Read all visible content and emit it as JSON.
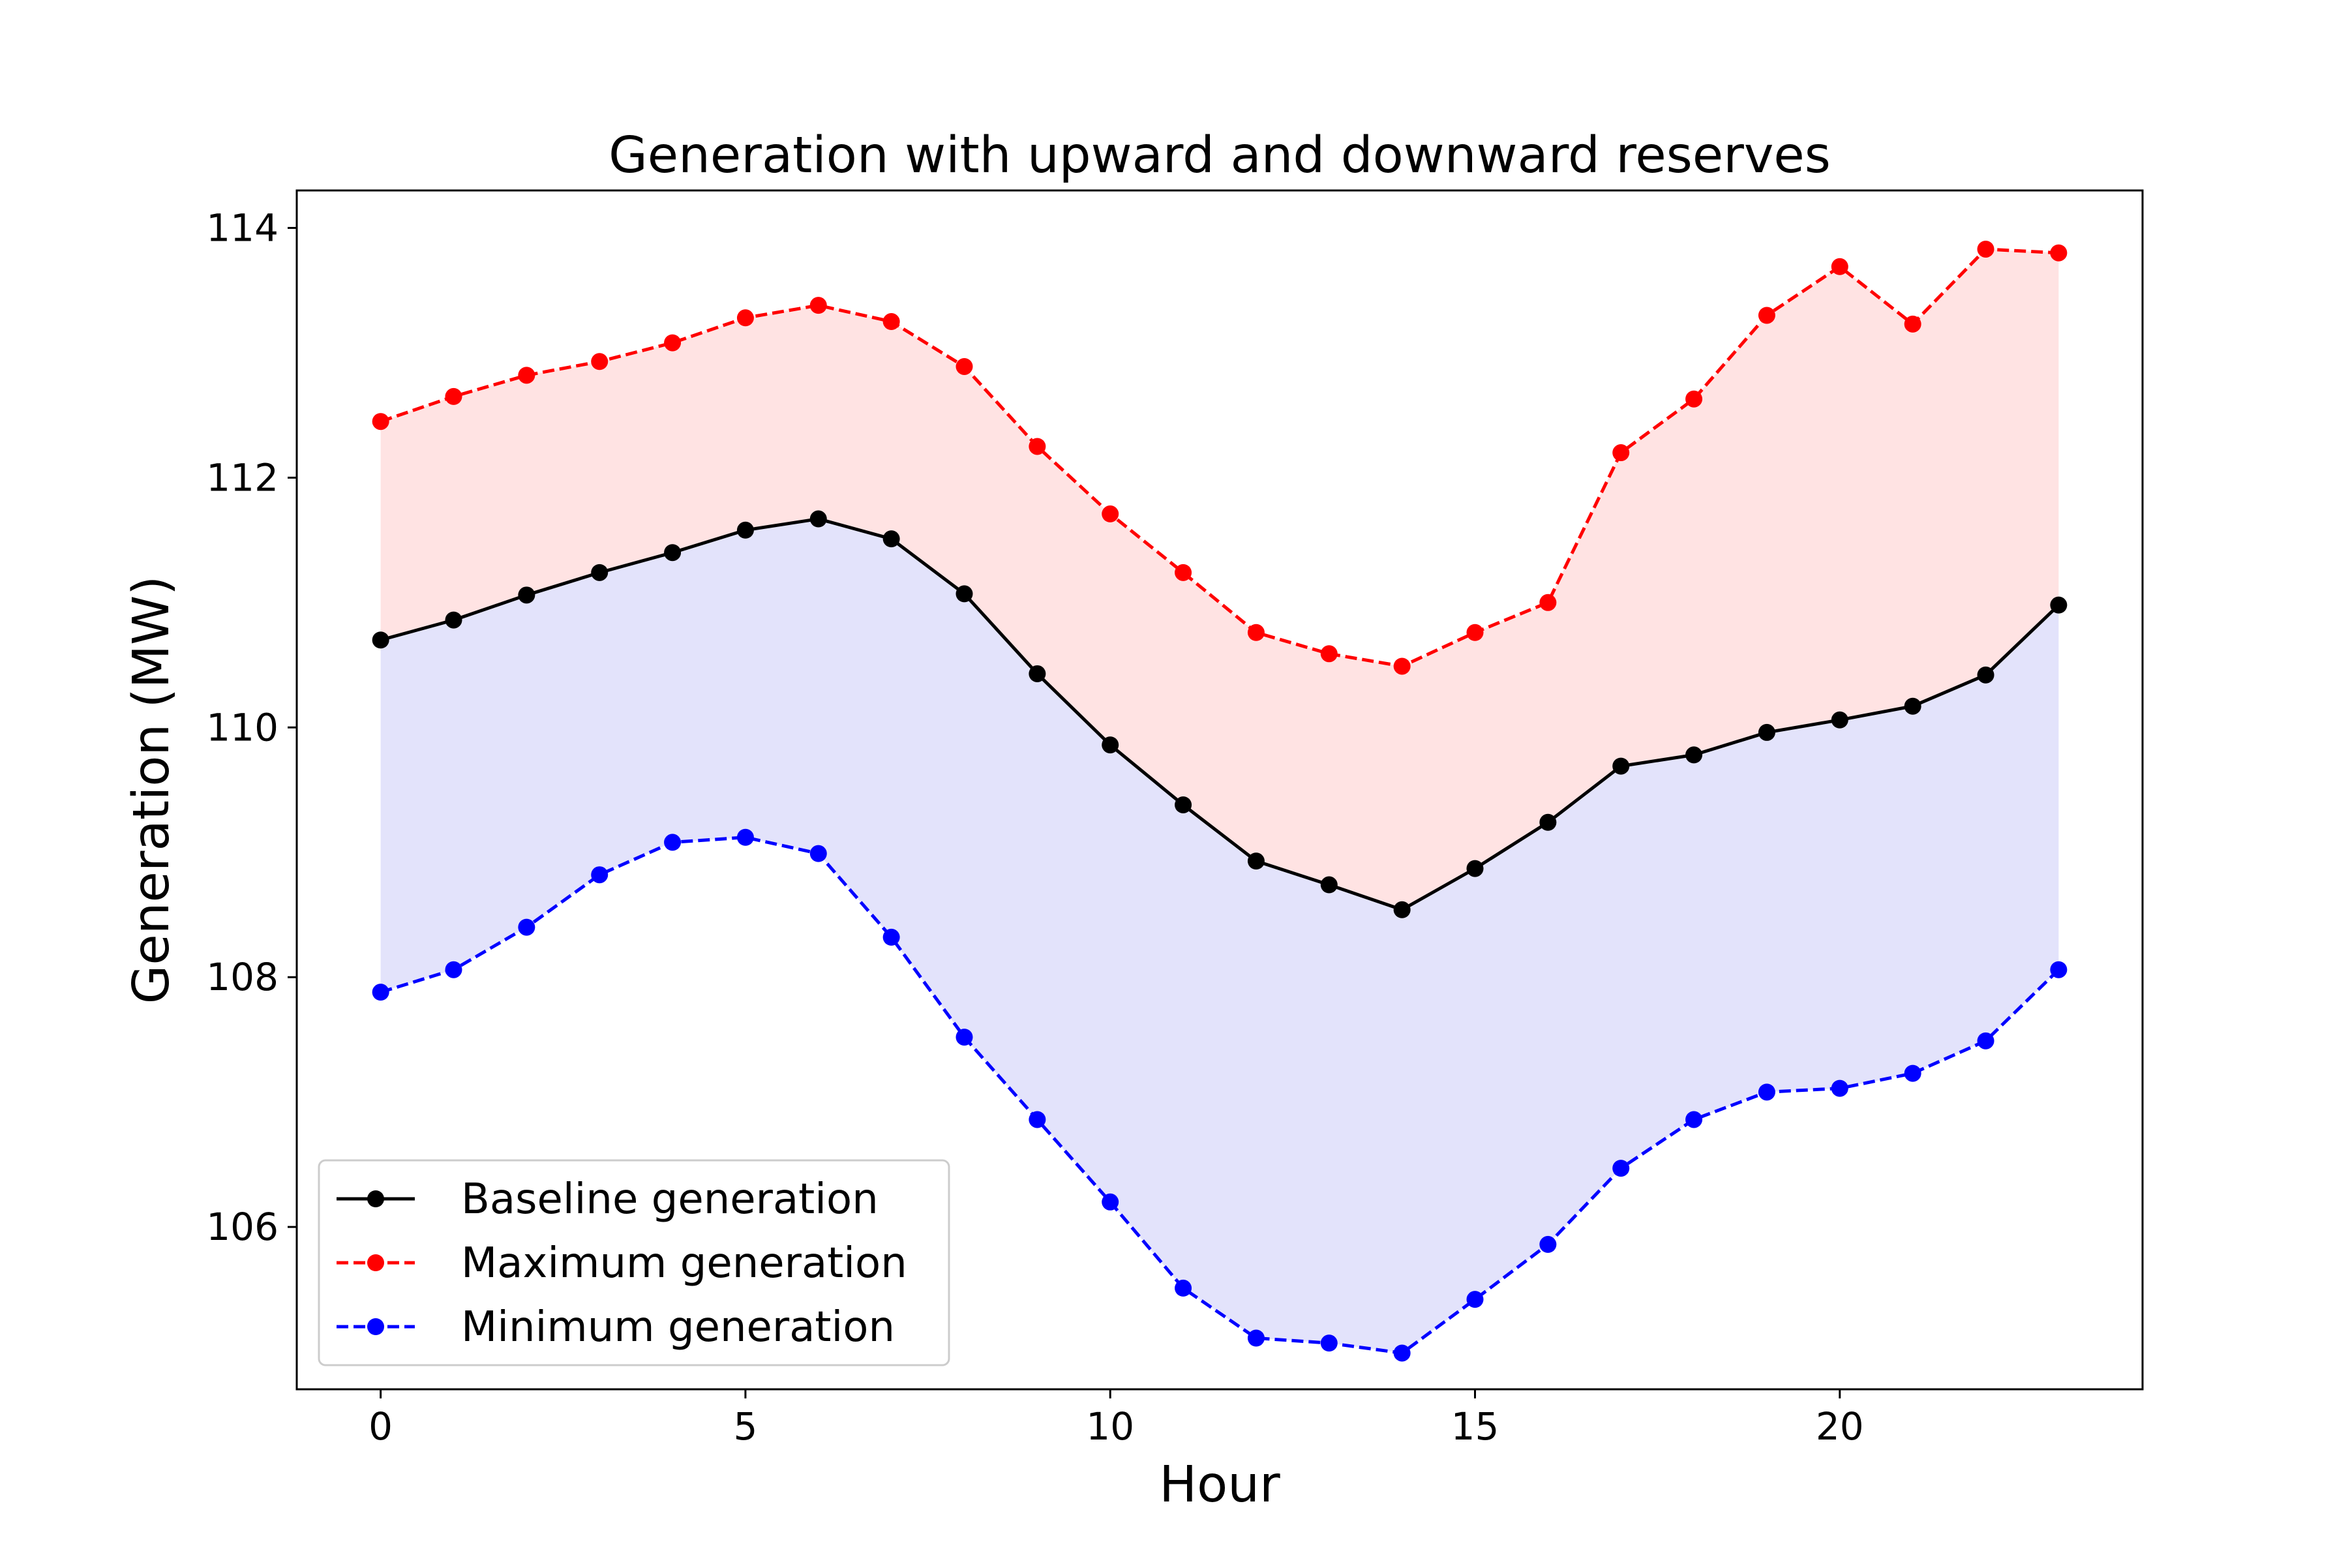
{
  "chart_data": {
    "type": "line",
    "title": "Generation with upward and downward reserves",
    "xlabel": "Hour",
    "ylabel": "Generation (MW)",
    "xlim": [
      -1.15,
      24.15
    ],
    "ylim": [
      104.7,
      114.3
    ],
    "xticks": [
      0,
      5,
      10,
      15,
      20
    ],
    "yticks": [
      106,
      108,
      110,
      112,
      114
    ],
    "grid": false,
    "legend_position": "lower-left",
    "x": [
      0,
      1,
      2,
      3,
      4,
      5,
      6,
      7,
      8,
      9,
      10,
      11,
      12,
      13,
      14,
      15,
      16,
      17,
      18,
      19,
      20,
      21,
      22,
      23
    ],
    "series": [
      {
        "name": "Baseline generation",
        "color": "#000000",
        "style": "solid",
        "values": [
          110.7,
          110.86,
          111.06,
          111.24,
          111.4,
          111.58,
          111.67,
          111.51,
          111.07,
          110.43,
          109.86,
          109.38,
          108.93,
          108.74,
          108.54,
          108.87,
          109.24,
          109.69,
          109.78,
          109.96,
          110.06,
          110.17,
          110.42,
          110.98
        ]
      },
      {
        "name": "Maximum generation",
        "color": "#ff0000",
        "style": "dashed",
        "values": [
          112.45,
          112.65,
          112.82,
          112.93,
          113.08,
          113.28,
          113.38,
          113.25,
          112.89,
          112.25,
          111.71,
          111.24,
          110.76,
          110.59,
          110.49,
          110.76,
          111.0,
          112.2,
          112.63,
          113.3,
          113.69,
          113.23,
          113.83,
          113.8
        ]
      },
      {
        "name": "Minimum generation",
        "color": "#0000ff",
        "style": "dashed",
        "values": [
          107.88,
          108.06,
          108.4,
          108.82,
          109.08,
          109.12,
          108.99,
          108.32,
          107.52,
          106.86,
          106.2,
          105.51,
          105.11,
          105.07,
          104.99,
          105.42,
          105.86,
          106.47,
          106.86,
          107.08,
          107.11,
          107.23,
          107.49,
          108.06
        ]
      }
    ],
    "fills": [
      {
        "between": [
          "Baseline generation",
          "Maximum generation"
        ],
        "color": "#ffe3e3"
      },
      {
        "between": [
          "Minimum generation",
          "Baseline generation"
        ],
        "color": "#e3e3fb"
      }
    ]
  }
}
